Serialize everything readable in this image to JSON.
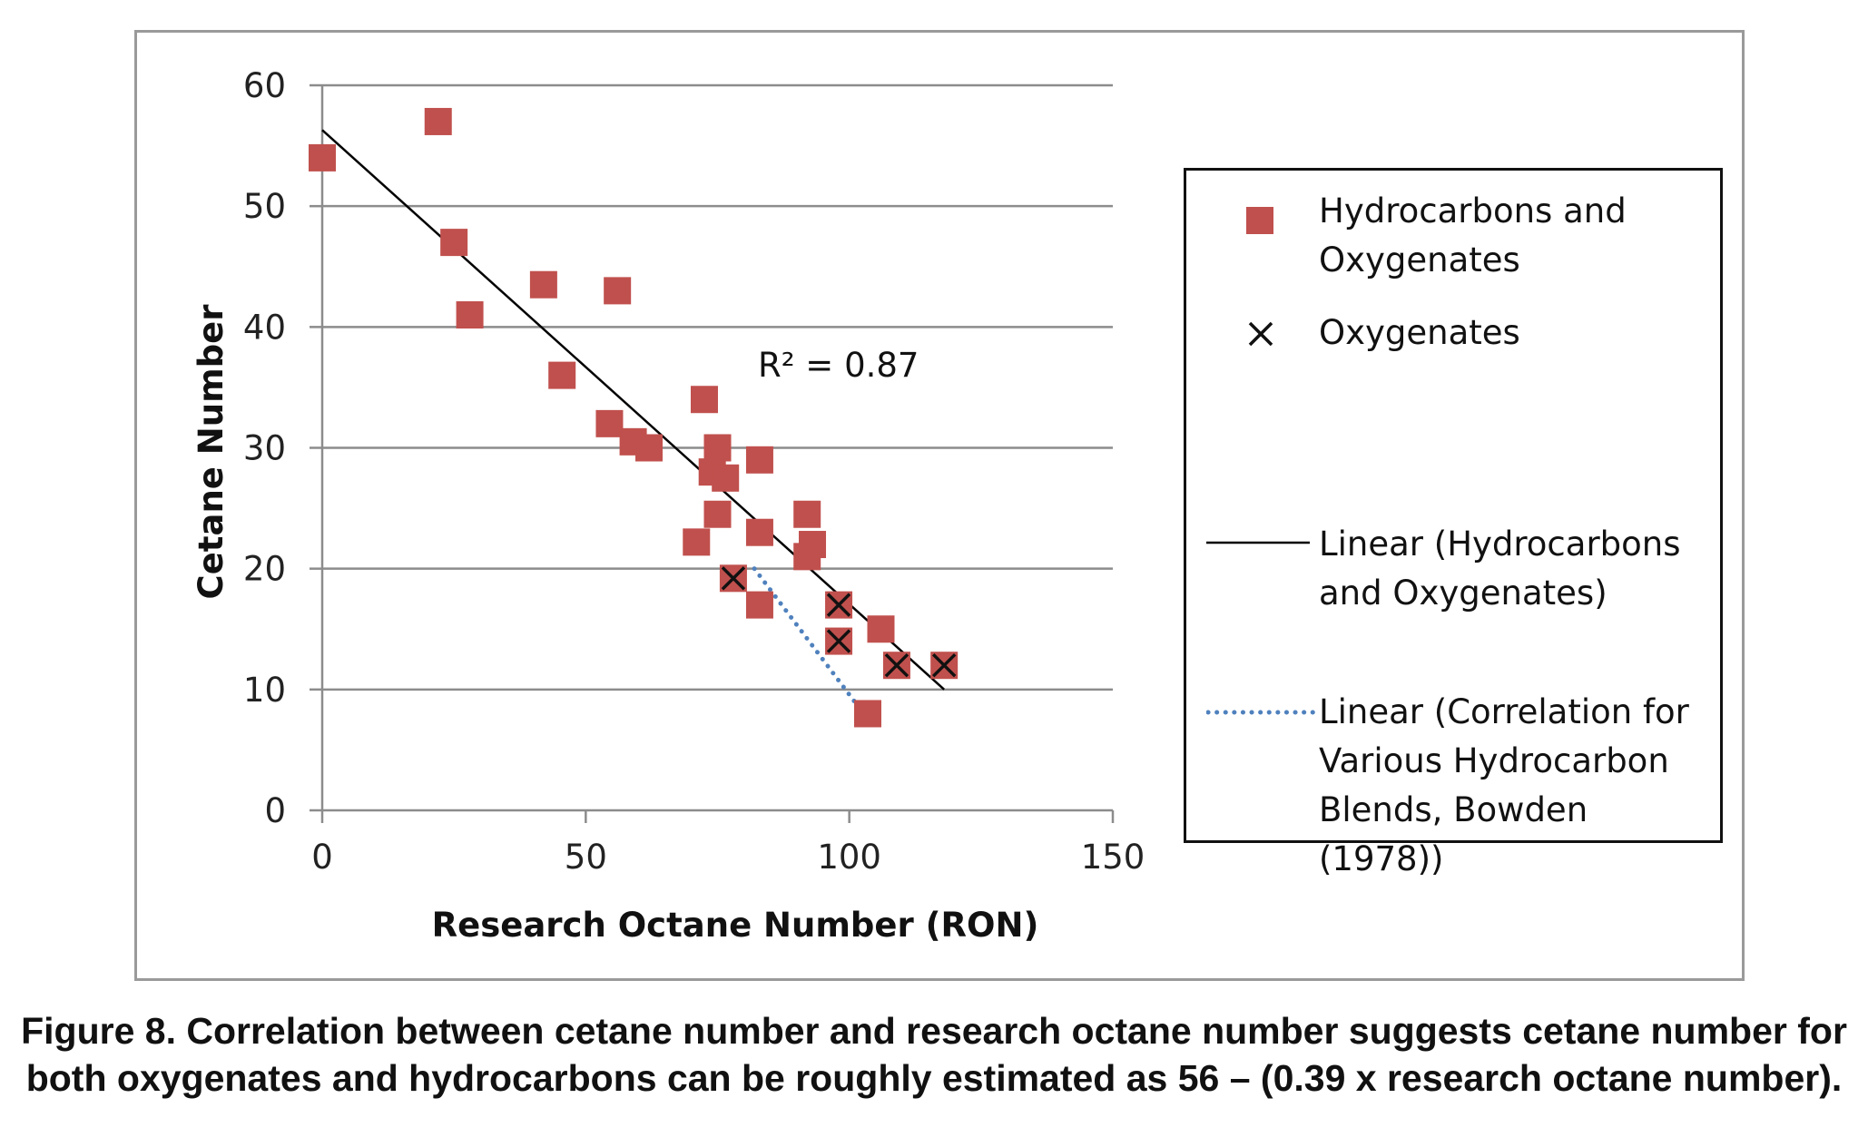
{
  "chart_data": {
    "type": "scatter",
    "xlabel": "Research Octane Number (RON)",
    "ylabel": "Cetane Number",
    "xlim": [
      0,
      150
    ],
    "ylim": [
      0,
      60
    ],
    "xticks": [
      "0",
      "50",
      "100",
      "150"
    ],
    "yticks": [
      "0",
      "10",
      "20",
      "30",
      "40",
      "50",
      "60"
    ],
    "grid": "horizontal",
    "legend_position": "right",
    "annotation": "R² = 0.87",
    "series": [
      {
        "name": "Hydrocarbons and Oxygenates",
        "marker": "square",
        "color": "#c0504d",
        "points": [
          [
            0,
            54
          ],
          [
            22,
            57
          ],
          [
            25,
            47
          ],
          [
            28,
            41
          ],
          [
            42,
            43.5
          ],
          [
            45.5,
            36
          ],
          [
            56,
            43
          ],
          [
            54.5,
            32
          ],
          [
            59,
            30.5
          ],
          [
            62,
            30
          ],
          [
            72.5,
            34
          ],
          [
            71,
            22.2
          ],
          [
            74,
            28
          ],
          [
            75,
            30
          ],
          [
            75,
            24.5
          ],
          [
            76.5,
            27.5
          ],
          [
            83,
            29
          ],
          [
            83,
            23
          ],
          [
            83,
            17
          ],
          [
            92,
            24.5
          ],
          [
            92,
            21
          ],
          [
            93,
            22
          ],
          [
            98,
            17
          ],
          [
            98,
            14
          ],
          [
            106,
            15
          ],
          [
            109,
            12
          ],
          [
            118,
            12
          ],
          [
            103.5,
            8
          ],
          [
            78,
            19.2
          ]
        ]
      },
      {
        "name": "Oxygenates",
        "marker": "x",
        "color": "#111111",
        "points": [
          [
            78,
            19.2
          ],
          [
            98,
            17
          ],
          [
            98,
            14
          ],
          [
            109,
            12
          ],
          [
            118,
            12
          ]
        ]
      },
      {
        "name": "Linear (Hydrocarbons and Oxygenates)",
        "line": "solid",
        "color": "#000000",
        "points": [
          [
            0,
            56.3
          ],
          [
            118,
            10
          ]
        ]
      },
      {
        "name": "Linear (Correlation for Various Hydrocarbon Blends, Bowden (1978))",
        "line": "dotted",
        "color": "#4f81bd",
        "points": [
          [
            82,
            20
          ],
          [
            101,
            9
          ]
        ]
      }
    ]
  },
  "legend": {
    "entry1": "Hydrocarbons and\nOxygenates",
    "entry2": "Oxygenates",
    "entry3": "Linear (Hydrocarbons\nand Oxygenates)",
    "entry4": "Linear (Correlation for\nVarious Hydrocarbon\nBlends, Bowden (1978))"
  },
  "caption": "Figure 8. Correlation between cetane number and research octane number suggests cetane number for both oxygenates and hydrocarbons can be roughly estimated as 56 – (0.39 x research octane number)."
}
